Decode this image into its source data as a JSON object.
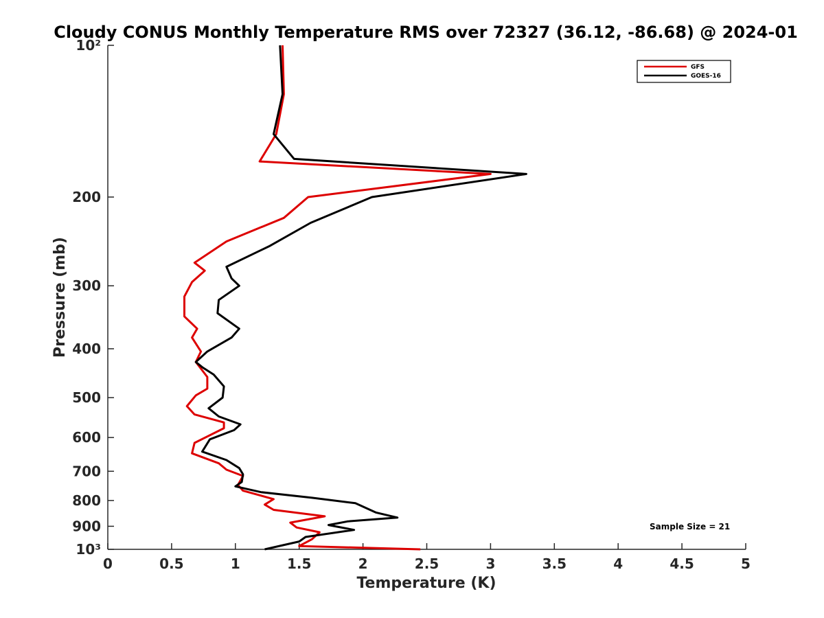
{
  "chart_data": {
    "type": "line",
    "title": "Cloudy CONUS Monthly Temperature RMS over 72327 (36.12, -86.68) @ 2024-01",
    "xlabel": "Temperature (K)",
    "ylabel": "Pressure (mb)",
    "xlim": [
      0,
      5
    ],
    "ylim": [
      100,
      1000
    ],
    "yscale": "log",
    "y_reversed": true,
    "grid": false,
    "legend_position": "top-right",
    "x_ticks": [
      0,
      0.5,
      1,
      1.5,
      2,
      2.5,
      3,
      3.5,
      4,
      4.5,
      5
    ],
    "x_tick_labels": [
      "0",
      "0.5",
      "1",
      "1.5",
      "2",
      "2.5",
      "3",
      "3.5",
      "4",
      "4.5",
      "5"
    ],
    "y_ticks": [
      100,
      200,
      300,
      400,
      500,
      600,
      700,
      800,
      900,
      1000
    ],
    "y_tick_labels": [
      "10²",
      "200",
      "300",
      "400",
      "500",
      "600",
      "700",
      "800",
      "900",
      "10³"
    ],
    "annotation": "Sample Size = 21",
    "series": [
      {
        "name": "GFS",
        "color": "#dd0000",
        "points": [
          [
            1.37,
            100
          ],
          [
            1.38,
            125
          ],
          [
            1.32,
            150
          ],
          [
            1.19,
            170
          ],
          [
            3.0,
            180
          ],
          [
            1.57,
            200
          ],
          [
            1.38,
            220
          ],
          [
            0.93,
            245
          ],
          [
            0.68,
            270
          ],
          [
            0.76,
            280
          ],
          [
            0.66,
            295
          ],
          [
            0.6,
            315
          ],
          [
            0.6,
            345
          ],
          [
            0.7,
            365
          ],
          [
            0.66,
            380
          ],
          [
            0.73,
            405
          ],
          [
            0.69,
            425
          ],
          [
            0.78,
            455
          ],
          [
            0.78,
            480
          ],
          [
            0.69,
            495
          ],
          [
            0.62,
            520
          ],
          [
            0.68,
            540
          ],
          [
            0.91,
            560
          ],
          [
            0.91,
            575
          ],
          [
            0.68,
            615
          ],
          [
            0.66,
            645
          ],
          [
            0.87,
            675
          ],
          [
            0.93,
            695
          ],
          [
            1.06,
            715
          ],
          [
            1.02,
            745
          ],
          [
            1.06,
            765
          ],
          [
            1.3,
            795
          ],
          [
            1.23,
            815
          ],
          [
            1.3,
            835
          ],
          [
            1.7,
            860
          ],
          [
            1.43,
            885
          ],
          [
            1.48,
            905
          ],
          [
            1.66,
            925
          ],
          [
            1.6,
            955
          ],
          [
            1.5,
            985
          ],
          [
            2.45,
            1000
          ]
        ]
      },
      {
        "name": "GOES-16",
        "color": "#000000",
        "points": [
          [
            1.35,
            100
          ],
          [
            1.37,
            125
          ],
          [
            1.3,
            150
          ],
          [
            1.46,
            168
          ],
          [
            3.28,
            180
          ],
          [
            2.07,
            200
          ],
          [
            1.59,
            225
          ],
          [
            1.27,
            250
          ],
          [
            0.93,
            275
          ],
          [
            0.97,
            290
          ],
          [
            1.03,
            300
          ],
          [
            0.87,
            320
          ],
          [
            0.86,
            340
          ],
          [
            1.03,
            365
          ],
          [
            0.97,
            380
          ],
          [
            0.78,
            405
          ],
          [
            0.69,
            425
          ],
          [
            0.74,
            435
          ],
          [
            0.83,
            450
          ],
          [
            0.91,
            475
          ],
          [
            0.9,
            500
          ],
          [
            0.79,
            525
          ],
          [
            0.87,
            545
          ],
          [
            1.04,
            565
          ],
          [
            0.99,
            580
          ],
          [
            0.8,
            605
          ],
          [
            0.74,
            640
          ],
          [
            0.93,
            665
          ],
          [
            1.03,
            690
          ],
          [
            1.06,
            710
          ],
          [
            1.05,
            735
          ],
          [
            1.0,
            750
          ],
          [
            1.2,
            770
          ],
          [
            1.6,
            790
          ],
          [
            1.94,
            810
          ],
          [
            2.1,
            845
          ],
          [
            2.27,
            865
          ],
          [
            1.88,
            880
          ],
          [
            1.73,
            895
          ],
          [
            1.93,
            915
          ],
          [
            1.55,
            945
          ],
          [
            1.5,
            965
          ],
          [
            1.23,
            1000
          ]
        ]
      }
    ]
  }
}
